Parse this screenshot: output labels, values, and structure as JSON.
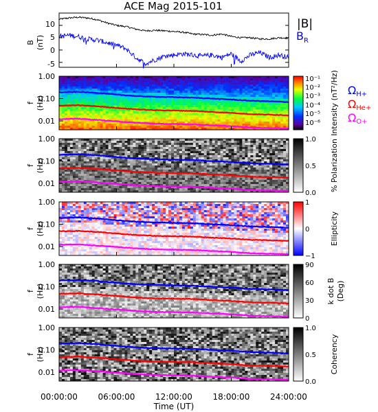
{
  "title": "ACE Mag 2015-101",
  "xaxis": {
    "label": "Time (UT)",
    "ticks": [
      "00:00:00",
      "06:00:00",
      "12:00:00",
      "18:00:00",
      "24:00:00"
    ],
    "hours": [
      0,
      6,
      12,
      18,
      24
    ]
  },
  "colors": {
    "B_total": "#000000",
    "B_R": "#0000ff",
    "omega_H": "#0000ff",
    "omega_He": "#ff0000",
    "omega_O": "#ff00ff"
  },
  "legends": {
    "B_total": "|B|",
    "B_R": "B",
    "B_R_sub": "R",
    "omega_H": "Ω",
    "omega_H_sub": "H+",
    "omega_He": "Ω",
    "omega_He_sub": "He+",
    "omega_O": "Ω",
    "omega_O_sub": "O+"
  },
  "panels": [
    {
      "id": "B",
      "ylabel": "B",
      "ylabel2": "(nT)",
      "yticks": [
        "10",
        "5",
        "0",
        "-5"
      ]
    },
    {
      "id": "intensity",
      "ylabel": "f",
      "ylabel2": "(Hz)",
      "yticks": [
        "1.00",
        "0.10",
        "0.01"
      ],
      "cbar_label": "Intensity (nT²/Hz)",
      "cbar_ticks": [
        "10⁻¹",
        "10⁻²",
        "10⁻³",
        "10⁻⁴",
        "10⁻⁵",
        "10⁻⁶"
      ]
    },
    {
      "id": "polarization",
      "ylabel": "f",
      "ylabel2": "(Hz)",
      "yticks": [
        "1.00",
        "0.10",
        "0.01"
      ],
      "cbar_label": "% Polarization",
      "cbar_ticks": [
        "1.0",
        "0.5",
        "0.0"
      ]
    },
    {
      "id": "ellipticity",
      "ylabel": "f",
      "ylabel2": "(Hz)",
      "yticks": [
        "1.00",
        "0.10",
        "0.01"
      ],
      "cbar_label": "Ellipticity",
      "cbar_ticks": [
        "1",
        "0",
        "−1"
      ]
    },
    {
      "id": "kdotb",
      "ylabel": "f",
      "ylabel2": "(Hz)",
      "yticks": [
        "1.00",
        "0.10",
        "0.01"
      ],
      "cbar_label": "k dot B",
      "cbar_label2": "(Deg)",
      "cbar_ticks": [
        "90",
        "60",
        "30",
        "0"
      ]
    },
    {
      "id": "coherency",
      "ylabel": "f",
      "ylabel2": "(Hz)",
      "yticks": [
        "1.00",
        "0.10",
        "0.01"
      ],
      "cbar_label": "Coherency",
      "cbar_ticks": [
        "1.0",
        "0.5",
        "0.0"
      ]
    }
  ],
  "chart_data": {
    "type": "line",
    "title": "ACE Mag 2015-101",
    "xlabel": "Time (UT)",
    "xlim_hours": [
      0,
      24
    ],
    "magnetic_field": {
      "ylabel": "B (nT)",
      "ylim": [
        -7,
        15
      ],
      "x_hours": [
        0,
        1,
        2,
        3,
        4,
        5,
        6,
        7,
        8,
        9,
        10,
        11,
        12,
        13,
        14,
        15,
        16,
        17,
        18,
        19,
        20,
        21,
        22,
        23,
        24
      ],
      "series": [
        {
          "name": "|B|",
          "values": [
            12.5,
            13,
            13.3,
            13,
            12.3,
            11,
            10,
            9.5,
            8.5,
            7.8,
            8,
            7.8,
            7.5,
            7.2,
            6.5,
            6.3,
            6,
            6.5,
            5.5,
            5,
            5,
            4.5,
            4.5,
            5,
            4.8
          ]
        },
        {
          "name": "B_R",
          "values": [
            5.5,
            6,
            5.5,
            4.5,
            4,
            3,
            2,
            0.5,
            -3,
            -5.5,
            -4,
            -2.5,
            -2,
            -1.5,
            -2,
            -2.5,
            -2,
            -3,
            -1.5,
            -4.5,
            -2,
            -1,
            -3,
            -2,
            -3
          ]
        }
      ]
    },
    "spectrogram_frequency_axis": {
      "ylabel": "f (Hz)",
      "scale": "log",
      "ylim": [
        0.004,
        1.0
      ]
    },
    "gyrofrequency_lines": {
      "x_hours": [
        0,
        2,
        4,
        6,
        8,
        10,
        12,
        14,
        16,
        18,
        20,
        22,
        24
      ],
      "series": [
        {
          "name": "Ω H+",
          "values": [
            0.19,
            0.2,
            0.18,
            0.15,
            0.13,
            0.12,
            0.115,
            0.11,
            0.1,
            0.09,
            0.08,
            0.075,
            0.07
          ]
        },
        {
          "name": "Ω He+",
          "values": [
            0.048,
            0.05,
            0.045,
            0.038,
            0.033,
            0.03,
            0.029,
            0.028,
            0.025,
            0.023,
            0.02,
            0.019,
            0.018
          ]
        },
        {
          "name": "Ω O+",
          "values": [
            0.012,
            0.0125,
            0.011,
            0.0095,
            0.0083,
            0.0075,
            0.0072,
            0.007,
            0.0063,
            0.0058,
            0.005,
            0.0048,
            0.0045
          ]
        }
      ]
    },
    "colorbars": [
      {
        "label": "Intensity (nT²/Hz)",
        "scale": "log",
        "range": [
          1e-06,
          0.3
        ]
      },
      {
        "label": "% Polarization",
        "range": [
          0,
          1
        ]
      },
      {
        "label": "Ellipticity",
        "range": [
          -1,
          1
        ]
      },
      {
        "label": "k dot B (Deg)",
        "range": [
          0,
          90
        ]
      },
      {
        "label": "Coherency",
        "range": [
          0,
          1
        ]
      }
    ]
  }
}
